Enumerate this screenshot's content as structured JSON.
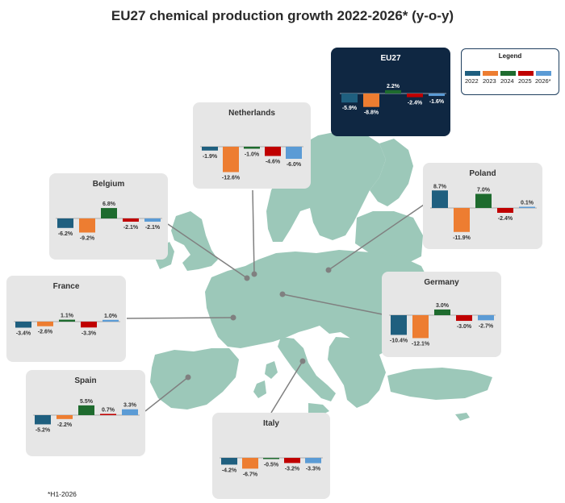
{
  "title": "EU27 chemical production growth 2022-2026* (y-o-y)",
  "footnote": "*H1-2026",
  "legend": {
    "title": "Legend",
    "items": [
      {
        "label": "2022",
        "color": "#1f5f7f"
      },
      {
        "label": "2023",
        "color": "#ed7d31"
      },
      {
        "label": "2024",
        "color": "#1e6b2e"
      },
      {
        "label": "2025",
        "color": "#c00000"
      },
      {
        "label": "2026*",
        "color": "#5b9bd5"
      }
    ]
  },
  "chart_data": [
    {
      "type": "bar",
      "title": "EU27",
      "categories": [
        "2022",
        "2023",
        "2024",
        "2025",
        "2026*"
      ],
      "values": [
        -5.9,
        -8.8,
        2.2,
        -2.4,
        -1.6
      ],
      "labels": [
        "-5.9%",
        "-8.8%",
        "2.2%",
        "-2.4%",
        "-1.6%"
      ]
    },
    {
      "type": "bar",
      "title": "Netherlands",
      "categories": [
        "2022",
        "2023",
        "2024",
        "2025",
        "2026*"
      ],
      "values": [
        -1.9,
        -12.6,
        -1.0,
        -4.6,
        -6.0
      ],
      "labels": [
        "-1.9%",
        "-12.6%",
        "-1.0%",
        "-4.6%",
        "-6.0%"
      ]
    },
    {
      "type": "bar",
      "title": "Belgium",
      "categories": [
        "2022",
        "2023",
        "2024",
        "2025",
        "2026*"
      ],
      "values": [
        -6.2,
        -9.2,
        6.8,
        -2.1,
        -2.1
      ],
      "labels": [
        "-6.2%",
        "-9.2%",
        "6.8%",
        "-2.1%",
        "-2.1%"
      ]
    },
    {
      "type": "bar",
      "title": "Poland",
      "categories": [
        "2022",
        "2023",
        "2024",
        "2025",
        "2026*"
      ],
      "values": [
        8.7,
        -11.9,
        7.0,
        -2.4,
        0.1
      ],
      "labels": [
        "8.7%",
        "-11.9%",
        "7.0%",
        "-2.4%",
        "0.1%"
      ]
    },
    {
      "type": "bar",
      "title": "France",
      "categories": [
        "2022",
        "2023",
        "2024",
        "2025",
        "2026*"
      ],
      "values": [
        -3.4,
        -2.6,
        1.1,
        -3.3,
        1.0
      ],
      "labels": [
        "-3.4%",
        "-2.6%",
        "1.1%",
        "-3.3%",
        "1.0%"
      ]
    },
    {
      "type": "bar",
      "title": "Germany",
      "categories": [
        "2022",
        "2023",
        "2024",
        "2025",
        "2026*"
      ],
      "values": [
        -10.4,
        -12.1,
        3.0,
        -3.0,
        -2.7
      ],
      "labels": [
        "-10.4%",
        "-12.1%",
        "3.0%",
        "-3.0%",
        "-2.7%"
      ]
    },
    {
      "type": "bar",
      "title": "Spain",
      "categories": [
        "2022",
        "2023",
        "2024",
        "2025",
        "2026*"
      ],
      "values": [
        -5.2,
        -2.2,
        5.5,
        0.7,
        3.3
      ],
      "labels": [
        "-5.2%",
        "-2.2%",
        "5.5%",
        "0.7%",
        "3.3%"
      ]
    },
    {
      "type": "bar",
      "title": "Italy",
      "categories": [
        "2022",
        "2023",
        "2024",
        "2025",
        "2026*"
      ],
      "values": [
        -4.2,
        -6.7,
        -0.5,
        -3.2,
        -3.3
      ],
      "labels": [
        "-4.2%",
        "-6.7%",
        "-0.5%",
        "-3.2%",
        "-3.3%"
      ]
    }
  ]
}
